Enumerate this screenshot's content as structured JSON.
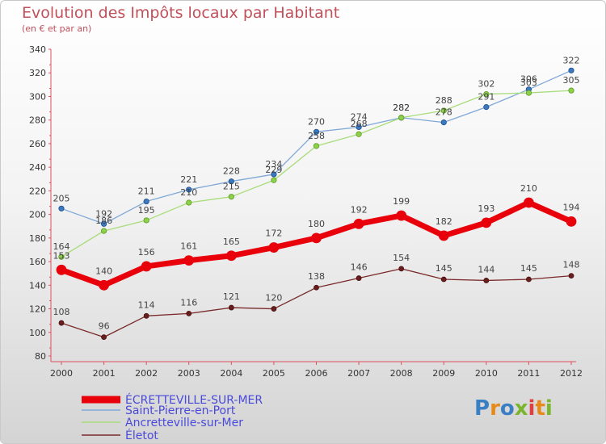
{
  "header": {
    "title": "Evolution des Impôts locaux par Habitant",
    "subtitle": "(en € et par an)"
  },
  "logo": {
    "text": "Proxiti",
    "colors": [
      "#3a7fc4",
      "#e88a1a",
      "#3a7fc4",
      "#7bb52e",
      "#e04040",
      "#e88a1a",
      "#7bb52e"
    ]
  },
  "chart_data": {
    "type": "line",
    "title": "Evolution des Impôts locaux par Habitant",
    "subtitle": "(en € et par an)",
    "x": [
      "2000",
      "2001",
      "2002",
      "2003",
      "2004",
      "2005",
      "2006",
      "2007",
      "2008",
      "2009",
      "2010",
      "2011",
      "2012"
    ],
    "ylim": [
      80,
      340
    ],
    "yticks": [
      80,
      100,
      120,
      140,
      160,
      180,
      200,
      220,
      240,
      260,
      280,
      300,
      320,
      340
    ],
    "grid": false,
    "legend_position": "bottom-left",
    "series": [
      {
        "name": "ÉCRETTEVILLE-SUR-MER",
        "color": "#e8000b",
        "values": [
          153,
          140,
          156,
          161,
          165,
          172,
          180,
          192,
          199,
          182,
          193,
          210,
          194
        ]
      },
      {
        "name": "Saint-Pierre-en-Port",
        "color": "#7fa8d8",
        "values": [
          205,
          192,
          211,
          221,
          228,
          234,
          270,
          274,
          282,
          278,
          291,
          306,
          322
        ]
      },
      {
        "name": "Ancretteville-sur-Mer",
        "color": "#a8dc7a",
        "values": [
          164,
          186,
          195,
          210,
          215,
          229,
          258,
          268,
          282,
          288,
          302,
          303,
          305
        ]
      },
      {
        "name": "Életot",
        "color": "#7a2a2a",
        "values": [
          108,
          96,
          114,
          116,
          121,
          120,
          138,
          146,
          154,
          145,
          144,
          145,
          148
        ]
      }
    ]
  }
}
